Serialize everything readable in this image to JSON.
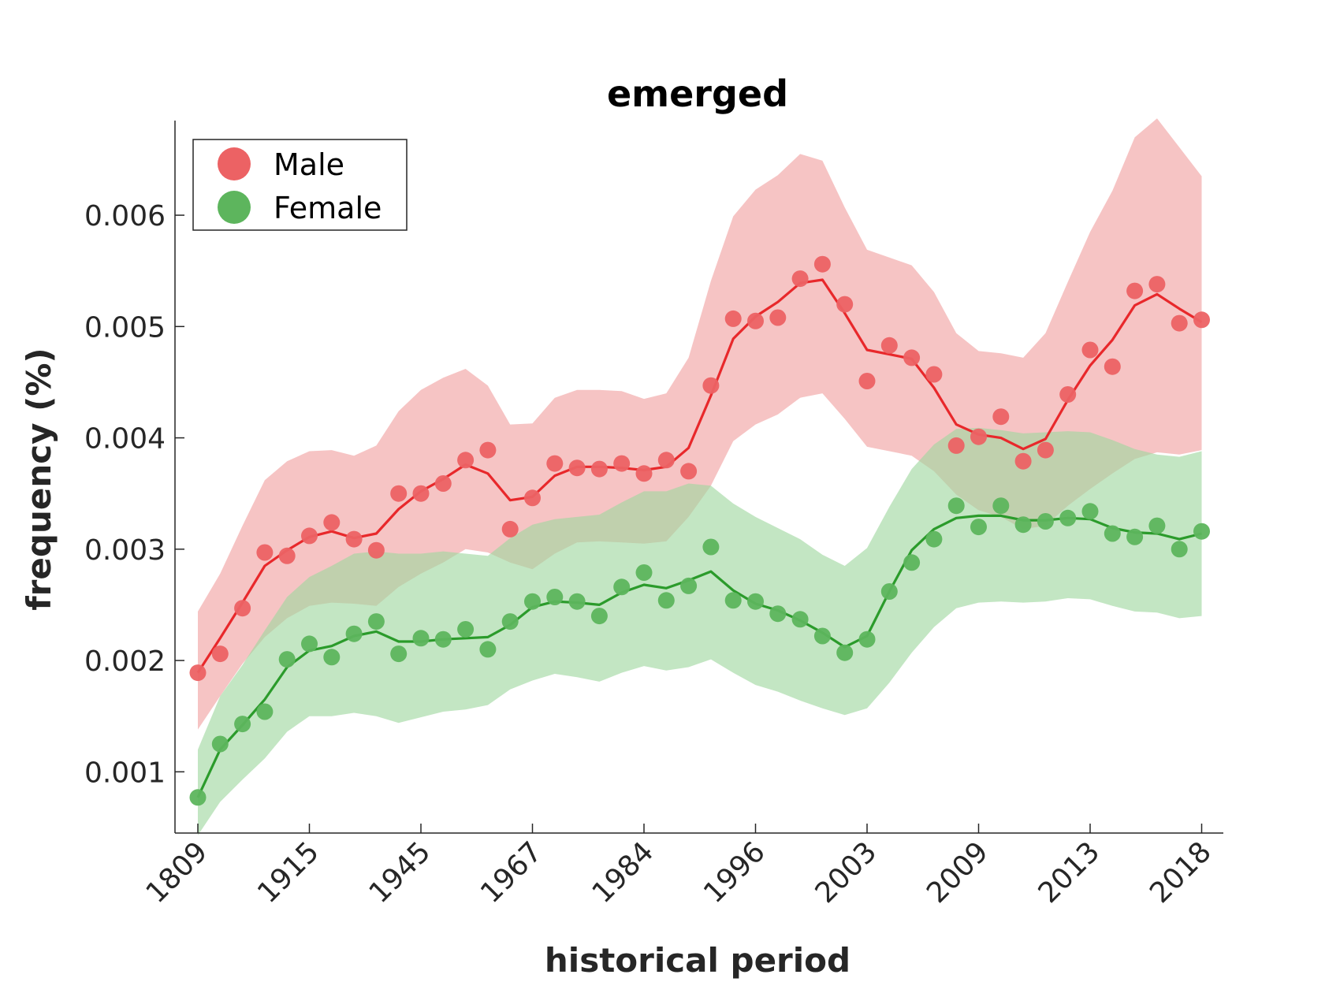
{
  "chart_data": {
    "type": "line",
    "title": "emerged",
    "xlabel": "historical period",
    "ylabel": "frequency (%)",
    "x_tick_labels": [
      "1809",
      "1915",
      "1945",
      "1967",
      "1984",
      "1996",
      "2003",
      "2009",
      "2013",
      "2018"
    ],
    "y_ticks": [
      0.001,
      0.002,
      0.003,
      0.004,
      0.005,
      0.006
    ],
    "y_tick_labels": [
      "0.001",
      "0.002",
      "0.003",
      "0.004",
      "0.005",
      "0.006"
    ],
    "ylim": [
      0.00045,
      0.00685
    ],
    "legend_position": "top-left",
    "series": [
      {
        "name": "Male",
        "color": "#e8282b",
        "point_color": "#ec6264",
        "band_color": "#f0a0a0",
        "points": [
          0.00189,
          0.00206,
          0.00247,
          0.00297,
          0.00294,
          0.00312,
          0.00324,
          0.00309,
          0.00299,
          0.0035,
          0.0035,
          0.00359,
          0.0038,
          0.00389,
          0.00318,
          0.00346,
          0.00377,
          0.00373,
          0.00372,
          0.00377,
          0.00368,
          0.0038,
          0.0037,
          0.00447,
          0.00507,
          0.00505,
          0.00508,
          0.00543,
          0.00556,
          0.0052,
          0.00451,
          0.00483,
          0.00472,
          0.00457,
          0.00393,
          0.00401,
          0.00419,
          0.00379,
          0.00389,
          0.00439,
          0.00479,
          0.00464,
          0.00532,
          0.00538,
          0.00503,
          0.00506
        ],
        "trend": [
          0.00189,
          0.0022,
          0.00252,
          0.00285,
          0.00299,
          0.00311,
          0.00316,
          0.0031,
          0.00314,
          0.00336,
          0.00352,
          0.00363,
          0.00376,
          0.00368,
          0.00344,
          0.00347,
          0.00366,
          0.00374,
          0.00374,
          0.00373,
          0.00371,
          0.00374,
          0.00391,
          0.00438,
          0.00489,
          0.00509,
          0.00522,
          0.00539,
          0.00542,
          0.00512,
          0.00479,
          0.00475,
          0.00471,
          0.00445,
          0.00412,
          0.00403,
          0.004,
          0.0039,
          0.00399,
          0.00434,
          0.00465,
          0.00488,
          0.00519,
          0.00529,
          0.00516,
          0.00504
        ],
        "band_upper": [
          0.00244,
          0.00278,
          0.00321,
          0.00362,
          0.00379,
          0.00388,
          0.00389,
          0.00384,
          0.00393,
          0.00424,
          0.00443,
          0.00454,
          0.00462,
          0.00447,
          0.00412,
          0.00413,
          0.00436,
          0.00443,
          0.00443,
          0.00442,
          0.00435,
          0.0044,
          0.00472,
          0.00541,
          0.00599,
          0.00623,
          0.00636,
          0.00655,
          0.00649,
          0.00607,
          0.00569,
          0.00562,
          0.00555,
          0.00531,
          0.00494,
          0.00478,
          0.00476,
          0.00472,
          0.00494,
          0.0054,
          0.00585,
          0.00622,
          0.0067,
          0.00687,
          0.00661,
          0.00635
        ],
        "band_lower": [
          0.00138,
          0.00168,
          0.00197,
          0.00221,
          0.00238,
          0.00249,
          0.00252,
          0.00251,
          0.00249,
          0.00266,
          0.00278,
          0.00288,
          0.003,
          0.00297,
          0.00288,
          0.00282,
          0.00296,
          0.00306,
          0.00307,
          0.00306,
          0.00305,
          0.00307,
          0.00329,
          0.00357,
          0.00397,
          0.00412,
          0.00421,
          0.00436,
          0.0044,
          0.00417,
          0.00392,
          0.00388,
          0.00384,
          0.0037,
          0.00349,
          0.00335,
          0.00329,
          0.00318,
          0.00321,
          0.00339,
          0.00354,
          0.00368,
          0.00381,
          0.00387,
          0.00385,
          0.00389
        ]
      },
      {
        "name": "Female",
        "color": "#2b9b2b",
        "point_color": "#5db55d",
        "band_color": "#9ed69e",
        "points": [
          0.00077,
          0.00125,
          0.00143,
          0.00154,
          0.00201,
          0.00215,
          0.00203,
          0.00224,
          0.00235,
          0.00206,
          0.0022,
          0.00219,
          0.00228,
          0.0021,
          0.00235,
          0.00253,
          0.00257,
          0.00253,
          0.0024,
          0.00266,
          0.00279,
          0.00254,
          0.00267,
          0.00302,
          0.00254,
          0.00253,
          0.00242,
          0.00237,
          0.00222,
          0.00207,
          0.00219,
          0.00262,
          0.00288,
          0.00309,
          0.00339,
          0.0032,
          0.00339,
          0.00322,
          0.00325,
          0.00328,
          0.00334,
          0.00314,
          0.00311,
          0.00321,
          0.003,
          0.00316
        ],
        "trend": [
          0.00077,
          0.0012,
          0.00142,
          0.00165,
          0.00194,
          0.00209,
          0.00213,
          0.00222,
          0.00226,
          0.00217,
          0.00217,
          0.00219,
          0.0022,
          0.00221,
          0.00232,
          0.00248,
          0.00253,
          0.00252,
          0.0025,
          0.00261,
          0.00268,
          0.00265,
          0.00272,
          0.0028,
          0.00263,
          0.00251,
          0.00245,
          0.00236,
          0.00225,
          0.00212,
          0.00222,
          0.00262,
          0.00299,
          0.00318,
          0.00328,
          0.0033,
          0.0033,
          0.00326,
          0.00326,
          0.00328,
          0.00327,
          0.00319,
          0.00315,
          0.00314,
          0.00309,
          0.00314
        ],
        "band_upper": [
          0.0012,
          0.00168,
          0.00196,
          0.00227,
          0.00257,
          0.00275,
          0.00285,
          0.00296,
          0.00298,
          0.00296,
          0.00296,
          0.00298,
          0.00296,
          0.00294,
          0.0031,
          0.00322,
          0.00327,
          0.00329,
          0.00331,
          0.00342,
          0.00352,
          0.00352,
          0.00359,
          0.00357,
          0.00341,
          0.00329,
          0.00319,
          0.00309,
          0.00295,
          0.00285,
          0.00301,
          0.00338,
          0.00372,
          0.00394,
          0.00408,
          0.00409,
          0.00407,
          0.00404,
          0.00405,
          0.00406,
          0.00405,
          0.00398,
          0.0039,
          0.00385,
          0.00383,
          0.00388
        ],
        "band_lower": [
          0.00043,
          0.00073,
          0.00093,
          0.00112,
          0.00136,
          0.0015,
          0.0015,
          0.00153,
          0.0015,
          0.00144,
          0.00149,
          0.00154,
          0.00156,
          0.0016,
          0.00174,
          0.00182,
          0.00188,
          0.00185,
          0.00181,
          0.00189,
          0.00195,
          0.00191,
          0.00194,
          0.00201,
          0.00189,
          0.00178,
          0.00172,
          0.00164,
          0.00157,
          0.00151,
          0.00157,
          0.0018,
          0.00207,
          0.0023,
          0.00247,
          0.00252,
          0.00253,
          0.00252,
          0.00253,
          0.00256,
          0.00255,
          0.00249,
          0.00244,
          0.00243,
          0.00238,
          0.0024
        ]
      }
    ]
  }
}
